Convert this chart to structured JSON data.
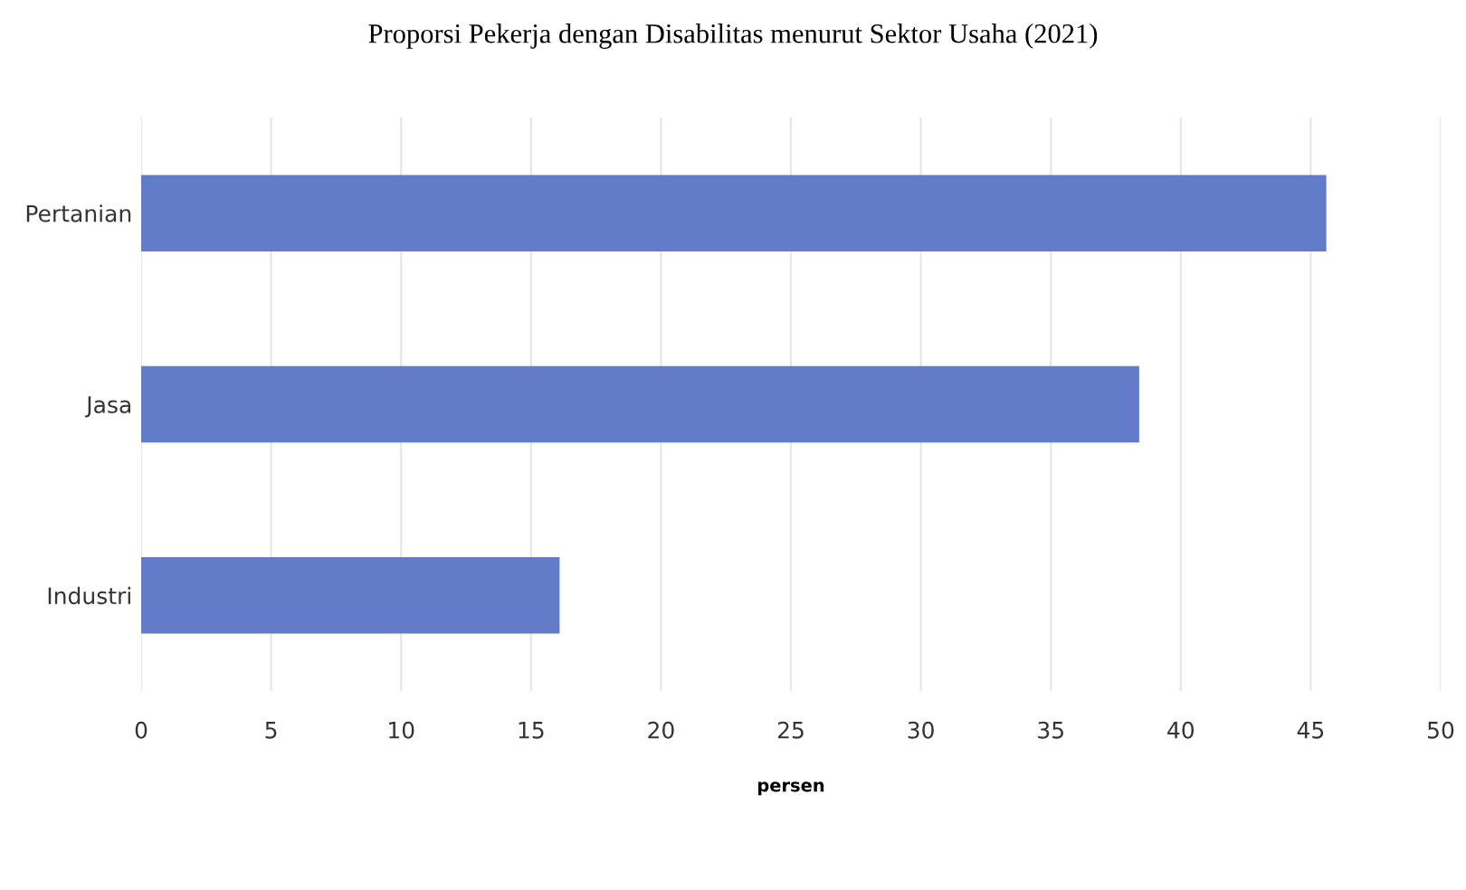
{
  "chart_data": {
    "type": "bar",
    "orientation": "horizontal",
    "title": "Proporsi Pekerja dengan Disabilitas menurut Sektor Usaha (2021)",
    "xlabel": "persen",
    "categories": [
      "Pertanian",
      "Jasa",
      "Industri"
    ],
    "values": [
      45.6,
      38.4,
      16.1
    ],
    "color": "#637cca",
    "xlim": [
      0,
      50
    ],
    "xticks": [
      0,
      5,
      10,
      15,
      20,
      25,
      30,
      35,
      40,
      45,
      50
    ],
    "grid": "x",
    "legend": false
  }
}
